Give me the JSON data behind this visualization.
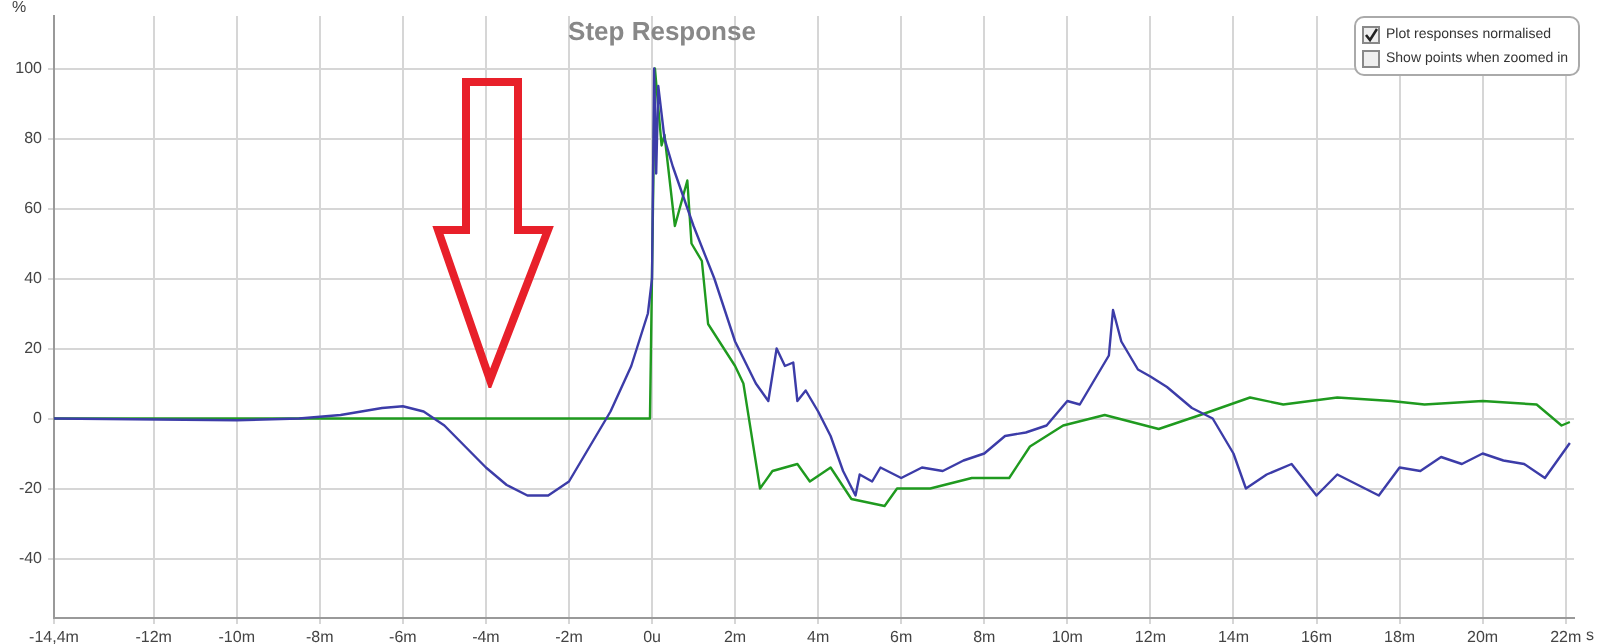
{
  "chart_data": {
    "type": "line",
    "title": "Step Response",
    "ylabel": "%",
    "xlabel": "s",
    "annotations": [
      "Plot responses normalised",
      "Show points when zoomed in"
    ],
    "xlim": [
      -14.4,
      22.2
    ],
    "ylim": [
      -57,
      115
    ],
    "xticks": [
      {
        "value": -14.4,
        "label": "-14,4m"
      },
      {
        "value": -12,
        "label": "-12m"
      },
      {
        "value": -10,
        "label": "-10m"
      },
      {
        "value": -8,
        "label": "-8m"
      },
      {
        "value": -6,
        "label": "-6m"
      },
      {
        "value": -4,
        "label": "-4m"
      },
      {
        "value": -2,
        "label": "-2m"
      },
      {
        "value": 0,
        "label": "0u"
      },
      {
        "value": 2,
        "label": "2m"
      },
      {
        "value": 4,
        "label": "4m"
      },
      {
        "value": 6,
        "label": "6m"
      },
      {
        "value": 8,
        "label": "8m"
      },
      {
        "value": 10,
        "label": "10m"
      },
      {
        "value": 12,
        "label": "12m"
      },
      {
        "value": 14,
        "label": "14m"
      },
      {
        "value": 16,
        "label": "16m"
      },
      {
        "value": 18,
        "label": "18m"
      },
      {
        "value": 20,
        "label": "20m"
      },
      {
        "value": 22,
        "label": "22m"
      }
    ],
    "yticks": [
      -40,
      -20,
      0,
      20,
      40,
      60,
      80,
      100
    ],
    "grid": true,
    "legend": false,
    "marker": "none",
    "line_style": "solid",
    "series": [
      {
        "color": "#3c3ca8",
        "x": [
          -14.4,
          -10,
          -8.5,
          -7.5,
          -6.5,
          -6,
          -5.5,
          -5,
          -4.5,
          -4,
          -3.5,
          -3,
          -2.5,
          -2,
          -1.5,
          -1,
          -0.5,
          -0.1,
          0,
          0.05,
          0.1,
          0.15,
          0.3,
          0.5,
          1,
          1.5,
          2,
          2.5,
          2.8,
          3,
          3.2,
          3.4,
          3.5,
          3.7,
          4,
          4.3,
          4.6,
          4.9,
          5,
          5.3,
          5.5,
          6,
          6.5,
          7,
          7.5,
          8,
          8.5,
          9,
          9.5,
          10,
          10.3,
          10.6,
          11,
          11.1,
          11.3,
          11.7,
          12,
          12.4,
          13,
          13.5,
          14,
          14.3,
          14.8,
          15.4,
          16,
          16.5,
          17,
          17.5,
          18,
          18.5,
          19,
          19.5,
          20,
          20.5,
          21,
          21.5,
          22.1
        ],
        "values": [
          0,
          -0.5,
          0,
          1,
          3,
          3.5,
          2,
          -2,
          -8,
          -14,
          -19,
          -22,
          -22,
          -18,
          -8,
          2,
          15,
          30,
          40,
          100,
          70,
          95,
          80,
          72,
          55,
          40,
          22,
          10,
          5,
          20,
          15,
          16,
          5,
          8,
          2,
          -5,
          -15,
          -22,
          -16,
          -18,
          -14,
          -17,
          -14,
          -15,
          -12,
          -10,
          -5,
          -4,
          -2,
          5,
          4,
          10,
          18,
          31,
          22,
          14,
          12,
          9,
          3,
          0,
          -10,
          -20,
          -16,
          -13,
          -22,
          -16,
          -19,
          -22,
          -14,
          -15,
          -11,
          -13,
          -10,
          -12,
          -13,
          -17,
          -7
        ]
      },
      {
        "color": "#1f9a1f",
        "x": [
          -14.4,
          -0.05,
          0.07,
          0.23,
          0.3,
          0.55,
          0.85,
          0.95,
          1.2,
          1.35,
          2,
          2.2,
          2.6,
          2.9,
          3.5,
          3.8,
          4.3,
          4.8,
          5.6,
          5.9,
          6.7,
          7.7,
          8.6,
          9.1,
          9.9,
          10.9,
          12.2,
          13.2,
          14.4,
          15.2,
          16.5,
          17.8,
          18.6,
          20,
          21.3,
          21.9,
          22.1
        ],
        "values": [
          0,
          0,
          100,
          78,
          81,
          55,
          68,
          50,
          45,
          27,
          15,
          10,
          -20,
          -15,
          -13,
          -18,
          -14,
          -23,
          -25,
          -20,
          -20,
          -17,
          -17,
          -8,
          -2,
          1,
          -3,
          1,
          6,
          4,
          6,
          5,
          4,
          5,
          4,
          -2,
          -1
        ]
      }
    ]
  }
}
